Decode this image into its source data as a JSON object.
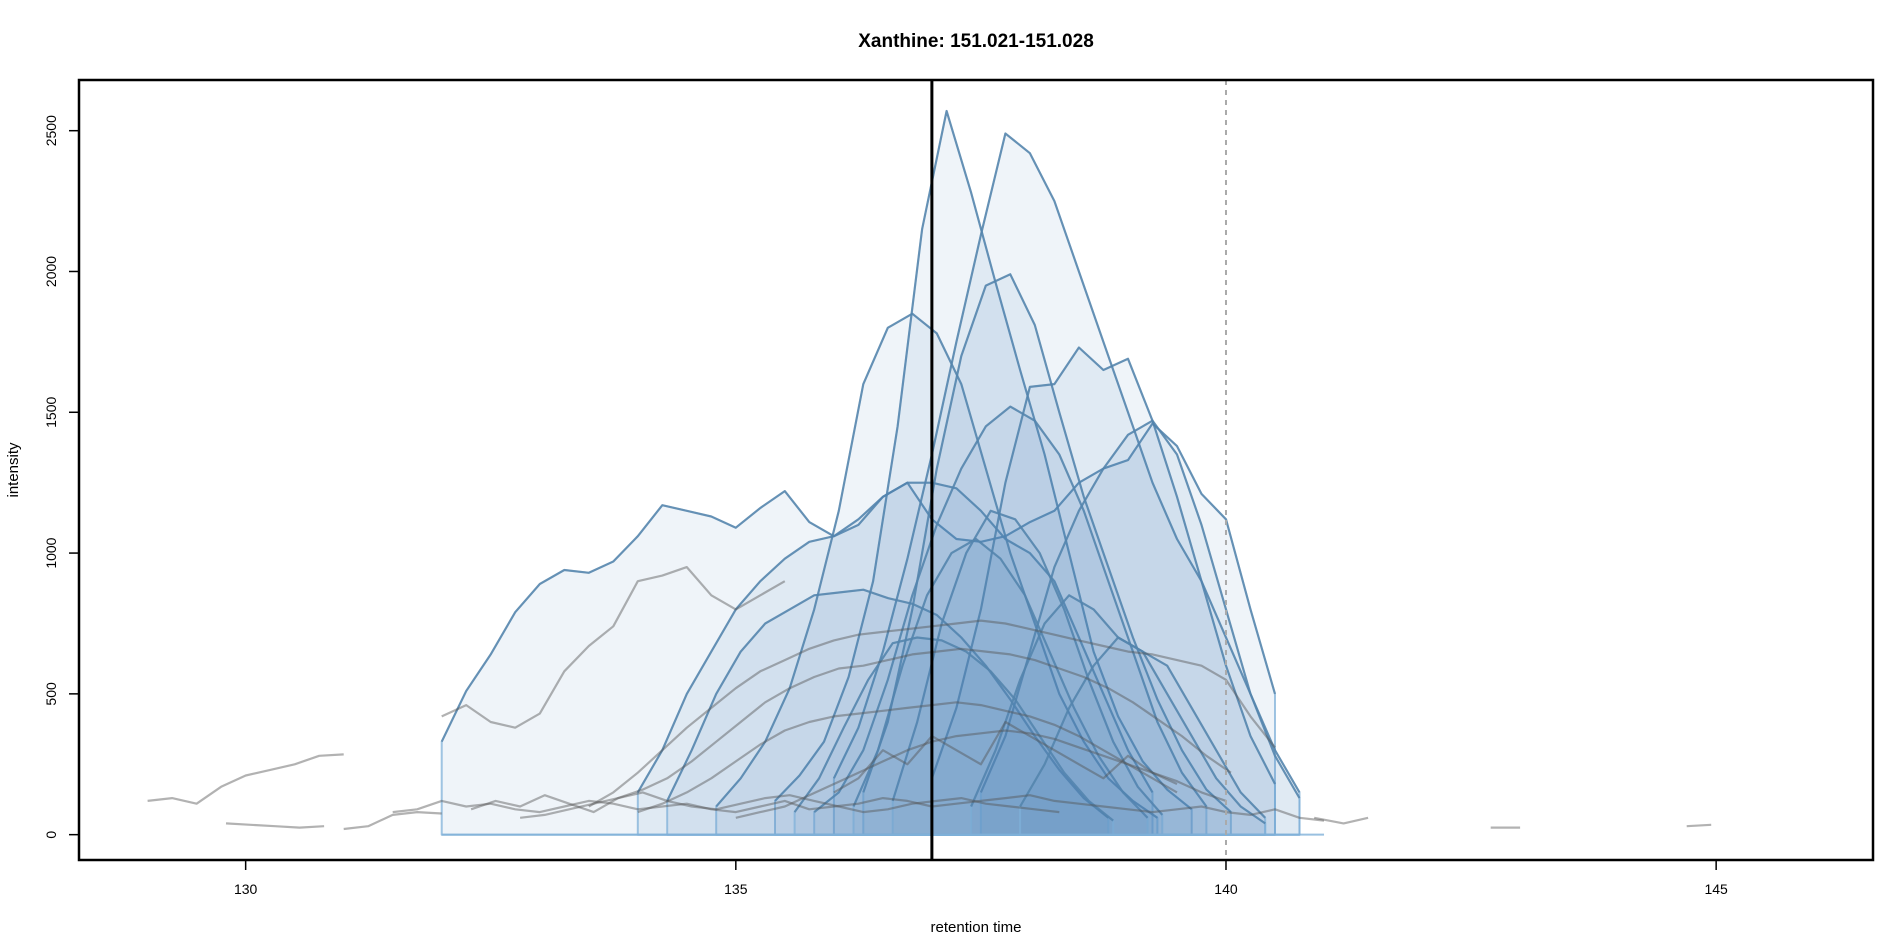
{
  "chart_data": {
    "type": "line",
    "title": "Xanthine: 151.021-151.028",
    "xlabel": "retention time",
    "ylabel": "intensity",
    "xlim": [
      128.3,
      146.6
    ],
    "ylim": [
      -90,
      2680
    ],
    "x_ticks": [
      130,
      135,
      140,
      145
    ],
    "x_tick_labels": [
      "130",
      "135",
      "140",
      "145"
    ],
    "y_ticks": [
      0,
      500,
      1000,
      1500,
      2000,
      2500
    ],
    "y_tick_labels": [
      "0",
      "500",
      "1000",
      "1500",
      "2000",
      "2500"
    ],
    "vlines": [
      {
        "name": "expected-rt",
        "x": 137.0,
        "style": "solid",
        "color": "#000000"
      },
      {
        "name": "rt-limit",
        "x": 140.0,
        "style": "dashed",
        "color": "#aaaaaa"
      }
    ],
    "colors": {
      "peak_fill": "#4a86bb",
      "peak_line": "#3f6f98",
      "raw_trace": "#555555",
      "edge": "#7fb0d8"
    },
    "peaks": [
      {
        "name": "peak-01",
        "x": [
          132.0,
          132.25,
          132.5,
          132.75,
          133.0,
          133.25,
          133.5,
          133.75,
          134.0,
          134.25,
          134.5,
          134.75,
          135.0,
          135.25,
          135.5,
          135.75,
          136.0,
          136.25,
          136.5,
          136.75,
          137.0,
          137.25,
          137.5,
          137.75,
          138.0,
          138.25,
          138.5,
          138.75,
          139.0,
          139.25,
          139.5,
          139.75,
          140.0,
          140.25,
          140.5
        ],
        "y": [
          330,
          510,
          640,
          790,
          890,
          940,
          930,
          970,
          1060,
          1170,
          1150,
          1130,
          1090,
          1160,
          1220,
          1110,
          1060,
          1120,
          1200,
          1250,
          1120,
          1050,
          1040,
          1060,
          1110,
          1150,
          1250,
          1300,
          1330,
          1460,
          1380,
          1210,
          1120,
          800,
          500
        ]
      },
      {
        "name": "peak-02",
        "x": [
          135.4,
          135.65,
          135.9,
          136.15,
          136.4,
          136.65,
          136.9,
          137.15,
          137.4,
          137.65,
          137.9,
          138.15,
          138.4,
          138.65,
          138.9,
          139.15,
          139.4,
          139.65
        ],
        "y": [
          120,
          210,
          330,
          560,
          900,
          1450,
          2150,
          2570,
          2280,
          1960,
          1650,
          1350,
          1000,
          650,
          420,
          260,
          160,
          90
        ]
      },
      {
        "name": "peak-03",
        "x": [
          136.0,
          136.25,
          136.5,
          136.75,
          137.0,
          137.25,
          137.5,
          137.75,
          138.0,
          138.25,
          138.5,
          138.75,
          139.0,
          139.25,
          139.5,
          139.75,
          140.0,
          140.25,
          140.5,
          140.75
        ],
        "y": [
          200,
          380,
          650,
          980,
          1350,
          1750,
          2130,
          2490,
          2420,
          2250,
          2000,
          1750,
          1500,
          1250,
          1050,
          900,
          700,
          500,
          300,
          150
        ]
      },
      {
        "name": "peak-04",
        "x": [
          134.0,
          134.25,
          134.5,
          134.75,
          135.0,
          135.25,
          135.5,
          135.75,
          136.0,
          136.25,
          136.5,
          136.75,
          137.0,
          137.25,
          137.5,
          137.75,
          138.0,
          138.25,
          138.5,
          138.75,
          139.0,
          139.25
        ],
        "y": [
          150,
          300,
          500,
          650,
          800,
          900,
          980,
          1040,
          1060,
          1100,
          1200,
          1250,
          1250,
          1230,
          1150,
          1050,
          1000,
          900,
          700,
          500,
          300,
          150
        ]
      },
      {
        "name": "peak-05",
        "x": [
          134.8,
          135.05,
          135.3,
          135.55,
          135.8,
          136.05,
          136.3,
          136.55,
          136.8,
          137.05,
          137.3,
          137.55,
          137.8,
          138.05,
          138.3,
          138.55,
          138.8,
          139.05,
          139.3
        ],
        "y": [
          100,
          200,
          330,
          520,
          800,
          1150,
          1600,
          1800,
          1850,
          1780,
          1600,
          1300,
          1000,
          750,
          500,
          330,
          200,
          120,
          60
        ]
      },
      {
        "name": "peak-06",
        "x": [
          136.3,
          136.55,
          136.8,
          137.05,
          137.3,
          137.55,
          137.8,
          138.05,
          138.3,
          138.55,
          138.8,
          139.05,
          139.3,
          139.55,
          139.8,
          140.05
        ],
        "y": [
          150,
          400,
          800,
          1300,
          1700,
          1950,
          1990,
          1810,
          1500,
          1200,
          950,
          700,
          480,
          300,
          160,
          80
        ]
      },
      {
        "name": "peak-07",
        "x": [
          137.0,
          137.25,
          137.5,
          137.75,
          138.0,
          138.25,
          138.5,
          138.75,
          139.0,
          139.25,
          139.5,
          139.75,
          140.0,
          140.25,
          140.5
        ],
        "y": [
          200,
          450,
          800,
          1250,
          1590,
          1600,
          1730,
          1650,
          1690,
          1470,
          1200,
          900,
          600,
          350,
          180
        ]
      },
      {
        "name": "peak-08",
        "x": [
          135.8,
          136.05,
          136.3,
          136.55,
          136.8,
          137.05,
          137.3,
          137.55,
          137.8,
          138.05,
          138.3,
          138.55,
          138.8,
          139.05,
          139.3,
          139.55,
          139.8
        ],
        "y": [
          80,
          150,
          300,
          550,
          850,
          1100,
          1300,
          1450,
          1520,
          1470,
          1350,
          1150,
          900,
          650,
          400,
          220,
          100
        ]
      },
      {
        "name": "peak-09",
        "x": [
          137.5,
          137.75,
          138.0,
          138.25,
          138.5,
          138.75,
          139.0,
          139.25,
          139.5,
          139.75,
          140.0,
          140.25,
          140.5,
          140.75
        ],
        "y": [
          150,
          350,
          650,
          950,
          1150,
          1300,
          1420,
          1470,
          1350,
          1100,
          800,
          500,
          280,
          130
        ]
      },
      {
        "name": "peak-10",
        "x": [
          134.3,
          134.55,
          134.8,
          135.05,
          135.3,
          135.55,
          135.8,
          136.05,
          136.3,
          136.55,
          136.8,
          137.05,
          137.3,
          137.55,
          137.8,
          138.05,
          138.3,
          138.55,
          138.8
        ],
        "y": [
          120,
          300,
          500,
          650,
          750,
          800,
          850,
          860,
          870,
          840,
          820,
          780,
          700,
          600,
          480,
          350,
          230,
          130,
          60
        ]
      },
      {
        "name": "peak-11",
        "x": [
          136.6,
          136.85,
          137.1,
          137.35,
          137.6,
          137.85,
          138.1,
          138.35,
          138.6,
          138.85,
          139.1,
          139.35
        ],
        "y": [
          120,
          400,
          750,
          1000,
          1150,
          1120,
          1000,
          800,
          550,
          330,
          170,
          70
        ]
      },
      {
        "name": "peak-12",
        "x": [
          136.2,
          136.45,
          136.7,
          136.95,
          137.2,
          137.45,
          137.7,
          137.95,
          138.2,
          138.45,
          138.7,
          138.95,
          139.2
        ],
        "y": [
          100,
          300,
          600,
          850,
          1000,
          1050,
          980,
          850,
          650,
          450,
          280,
          150,
          60
        ]
      },
      {
        "name": "peak-13",
        "x": [
          137.4,
          137.65,
          137.9,
          138.15,
          138.4,
          138.65,
          138.9,
          139.15,
          139.4,
          139.65,
          139.9,
          140.15,
          140.4
        ],
        "y": [
          100,
          300,
          550,
          750,
          850,
          800,
          700,
          650,
          600,
          450,
          300,
          150,
          60
        ]
      },
      {
        "name": "peak-14",
        "x": [
          135.6,
          135.85,
          136.1,
          136.35,
          136.6,
          136.85,
          137.1,
          137.35,
          137.6,
          137.85,
          138.1,
          138.35,
          138.6,
          138.85
        ],
        "y": [
          80,
          200,
          380,
          550,
          680,
          700,
          690,
          650,
          580,
          480,
          350,
          220,
          120,
          50
        ]
      },
      {
        "name": "peak-15",
        "x": [
          137.9,
          138.15,
          138.4,
          138.65,
          138.9,
          139.15,
          139.4,
          139.65,
          139.9,
          140.15,
          140.4
        ],
        "y": [
          100,
          250,
          450,
          600,
          700,
          650,
          500,
          350,
          200,
          100,
          40
        ]
      }
    ],
    "raw_traces": [
      {
        "name": "trace-01",
        "x": [
          129.0,
          129.25,
          129.5,
          129.75,
          130.0,
          130.25,
          130.5,
          130.75,
          131.0
        ],
        "y": [
          120,
          130,
          110,
          170,
          210,
          230,
          250,
          280,
          285
        ]
      },
      {
        "name": "trace-02",
        "x": [
          132.0,
          132.25,
          132.5,
          132.75,
          133.0,
          133.25,
          133.5,
          133.75,
          134.0,
          134.25,
          134.5,
          134.75,
          135.0,
          135.25,
          135.5
        ],
        "y": [
          420,
          460,
          400,
          380,
          430,
          580,
          670,
          740,
          900,
          920,
          950,
          850,
          800,
          850,
          900
        ]
      },
      {
        "name": "trace-03",
        "x": [
          131.5,
          131.75,
          132.0,
          132.25,
          132.5,
          132.75,
          133.0,
          133.25,
          133.5,
          133.75,
          134.0,
          134.25,
          134.5,
          134.75,
          135.0,
          135.25,
          135.5,
          135.75,
          136.0,
          136.25,
          136.5,
          136.75,
          137.0,
          137.25,
          137.5,
          137.75,
          138.0,
          138.25,
          138.5,
          138.75,
          139.0,
          139.25,
          139.5,
          139.75,
          140.0,
          140.25,
          140.5,
          140.75,
          141.0
        ],
        "y": [
          80,
          90,
          120,
          100,
          110,
          90,
          80,
          100,
          120,
          110,
          90,
          100,
          110,
          90,
          80,
          100,
          120,
          90,
          100,
          110,
          130,
          120,
          100,
          110,
          120,
          130,
          140,
          120,
          110,
          100,
          90,
          80,
          90,
          100,
          80,
          70,
          90,
          60,
          50
        ]
      },
      {
        "name": "trace-04",
        "x": [
          132.8,
          133.05,
          133.3,
          133.55,
          133.8,
          134.05,
          134.3,
          134.55,
          134.8,
          135.05,
          135.3,
          135.55,
          135.8,
          136.05,
          136.3,
          136.55,
          136.8,
          137.05,
          137.3,
          137.55,
          137.8,
          138.05,
          138.3,
          138.55,
          138.8,
          139.05,
          139.3,
          139.55,
          139.8,
          140.05
        ],
        "y": [
          60,
          70,
          90,
          110,
          130,
          160,
          200,
          260,
          330,
          400,
          470,
          520,
          560,
          590,
          600,
          620,
          640,
          650,
          660,
          650,
          640,
          620,
          590,
          560,
          520,
          470,
          410,
          350,
          280,
          220
        ]
      },
      {
        "name": "trace-05",
        "x": [
          133.5,
          133.75,
          134.0,
          134.25,
          134.5,
          134.75,
          135.0,
          135.25,
          135.5,
          135.75,
          136.0,
          136.25,
          136.5,
          136.75,
          137.0,
          137.25,
          137.5,
          137.75,
          138.0,
          138.25,
          138.5,
          138.75,
          139.0,
          139.25,
          139.5,
          139.75,
          140.0,
          140.25,
          140.5
        ],
        "y": [
          100,
          150,
          220,
          300,
          380,
          450,
          520,
          580,
          620,
          660,
          690,
          710,
          720,
          730,
          740,
          750,
          760,
          750,
          730,
          710,
          690,
          670,
          650,
          640,
          620,
          600,
          550,
          420,
          310
        ]
      },
      {
        "name": "trace-06",
        "x": [
          134.0,
          134.25,
          134.5,
          134.75,
          135.0,
          135.25,
          135.5,
          135.75,
          136.0,
          136.25,
          136.5,
          136.75,
          137.0,
          137.25,
          137.5,
          137.75,
          138.0,
          138.25,
          138.5,
          138.75,
          139.0,
          139.25,
          139.5
        ],
        "y": [
          80,
          110,
          150,
          200,
          260,
          320,
          370,
          400,
          420,
          430,
          440,
          450,
          460,
          470,
          460,
          440,
          420,
          390,
          350,
          300,
          250,
          200,
          150
        ]
      },
      {
        "name": "trace-07",
        "x": [
          135.0,
          135.25,
          135.5,
          135.75,
          136.0,
          136.25,
          136.5,
          136.75,
          137.0,
          137.25,
          137.5,
          137.75,
          138.0,
          138.25,
          138.5,
          138.75,
          139.0,
          139.25,
          139.5,
          139.75,
          140.0
        ],
        "y": [
          60,
          80,
          100,
          140,
          180,
          220,
          260,
          300,
          330,
          350,
          360,
          370,
          360,
          340,
          310,
          280,
          250,
          220,
          190,
          150,
          120
        ]
      },
      {
        "name": "trace-08",
        "x": [
          136.0,
          136.25,
          136.5,
          136.75,
          137.0,
          137.25,
          137.5,
          137.75,
          138.0,
          138.25,
          138.5,
          138.75,
          139.0,
          139.25,
          139.5
        ],
        "y": [
          150,
          200,
          300,
          250,
          350,
          300,
          250,
          400,
          350,
          300,
          250,
          200,
          280,
          220,
          180
        ]
      },
      {
        "name": "trace-09",
        "x": [
          132.3,
          132.55,
          132.8,
          133.05,
          133.3,
          133.55,
          133.8,
          134.05,
          134.3,
          134.55,
          134.8,
          135.05,
          135.3,
          135.55,
          135.8,
          136.05,
          136.3,
          136.55,
          136.8,
          137.05,
          137.3,
          137.55,
          137.8,
          138.05,
          138.3
        ],
        "y": [
          90,
          120,
          100,
          140,
          110,
          80,
          130,
          150,
          120,
          100,
          90,
          110,
          130,
          140,
          120,
          100,
          80,
          90,
          110,
          120,
          130,
          110,
          100,
          90,
          80
        ]
      },
      {
        "name": "trace-10",
        "x": [
          129.8,
          130.05,
          130.3,
          130.55,
          130.8
        ],
        "y": [
          40,
          35,
          30,
          25,
          30
        ]
      },
      {
        "name": "trace-11",
        "x": [
          131.0,
          131.25,
          131.5,
          131.75,
          132.0
        ],
        "y": [
          20,
          30,
          70,
          80,
          75
        ]
      },
      {
        "name": "trace-12",
        "x": [
          140.9,
          141.2,
          141.45
        ],
        "y": [
          60,
          40,
          60
        ]
      },
      {
        "name": "trace-13",
        "x": [
          142.7,
          143.0
        ],
        "y": [
          25,
          25
        ]
      },
      {
        "name": "trace-14",
        "x": [
          144.7,
          144.95
        ],
        "y": [
          30,
          35
        ]
      }
    ]
  }
}
